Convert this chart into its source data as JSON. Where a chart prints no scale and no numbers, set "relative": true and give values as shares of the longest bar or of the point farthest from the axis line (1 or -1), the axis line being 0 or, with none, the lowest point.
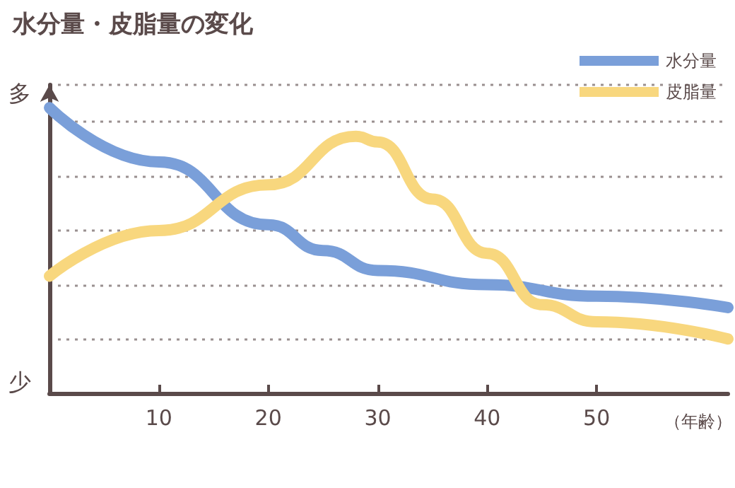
{
  "chart_data": {
    "type": "line",
    "title": "水分量・皮脂量の変化",
    "xlabel": "（年齢）",
    "relative": true,
    "series": [
      {
        "name": "水分量",
        "color": "#7a9fd9",
        "x": [
          0,
          10,
          20,
          25,
          30,
          40,
          50,
          62
        ],
        "values": [
          1,
          0.81,
          0.59,
          0.5,
          0.43,
          0.38,
          0.34,
          0.3
        ]
      },
      {
        "name": "皮脂量",
        "color": "#f8d77e",
        "x": [
          0,
          10,
          20,
          28,
          30,
          35,
          40,
          45,
          50,
          62
        ],
        "values": [
          0.41,
          0.57,
          0.73,
          0.9,
          0.88,
          0.68,
          0.49,
          0.31,
          0.25,
          0.19
        ]
      }
    ],
    "xlim": [
      0,
      62
    ],
    "xticks": [
      10,
      20,
      30,
      40,
      50
    ],
    "annotations": [
      "多",
      "少"
    ],
    "grid": "y",
    "legend": "top right",
    "line_style": "solid"
  }
}
